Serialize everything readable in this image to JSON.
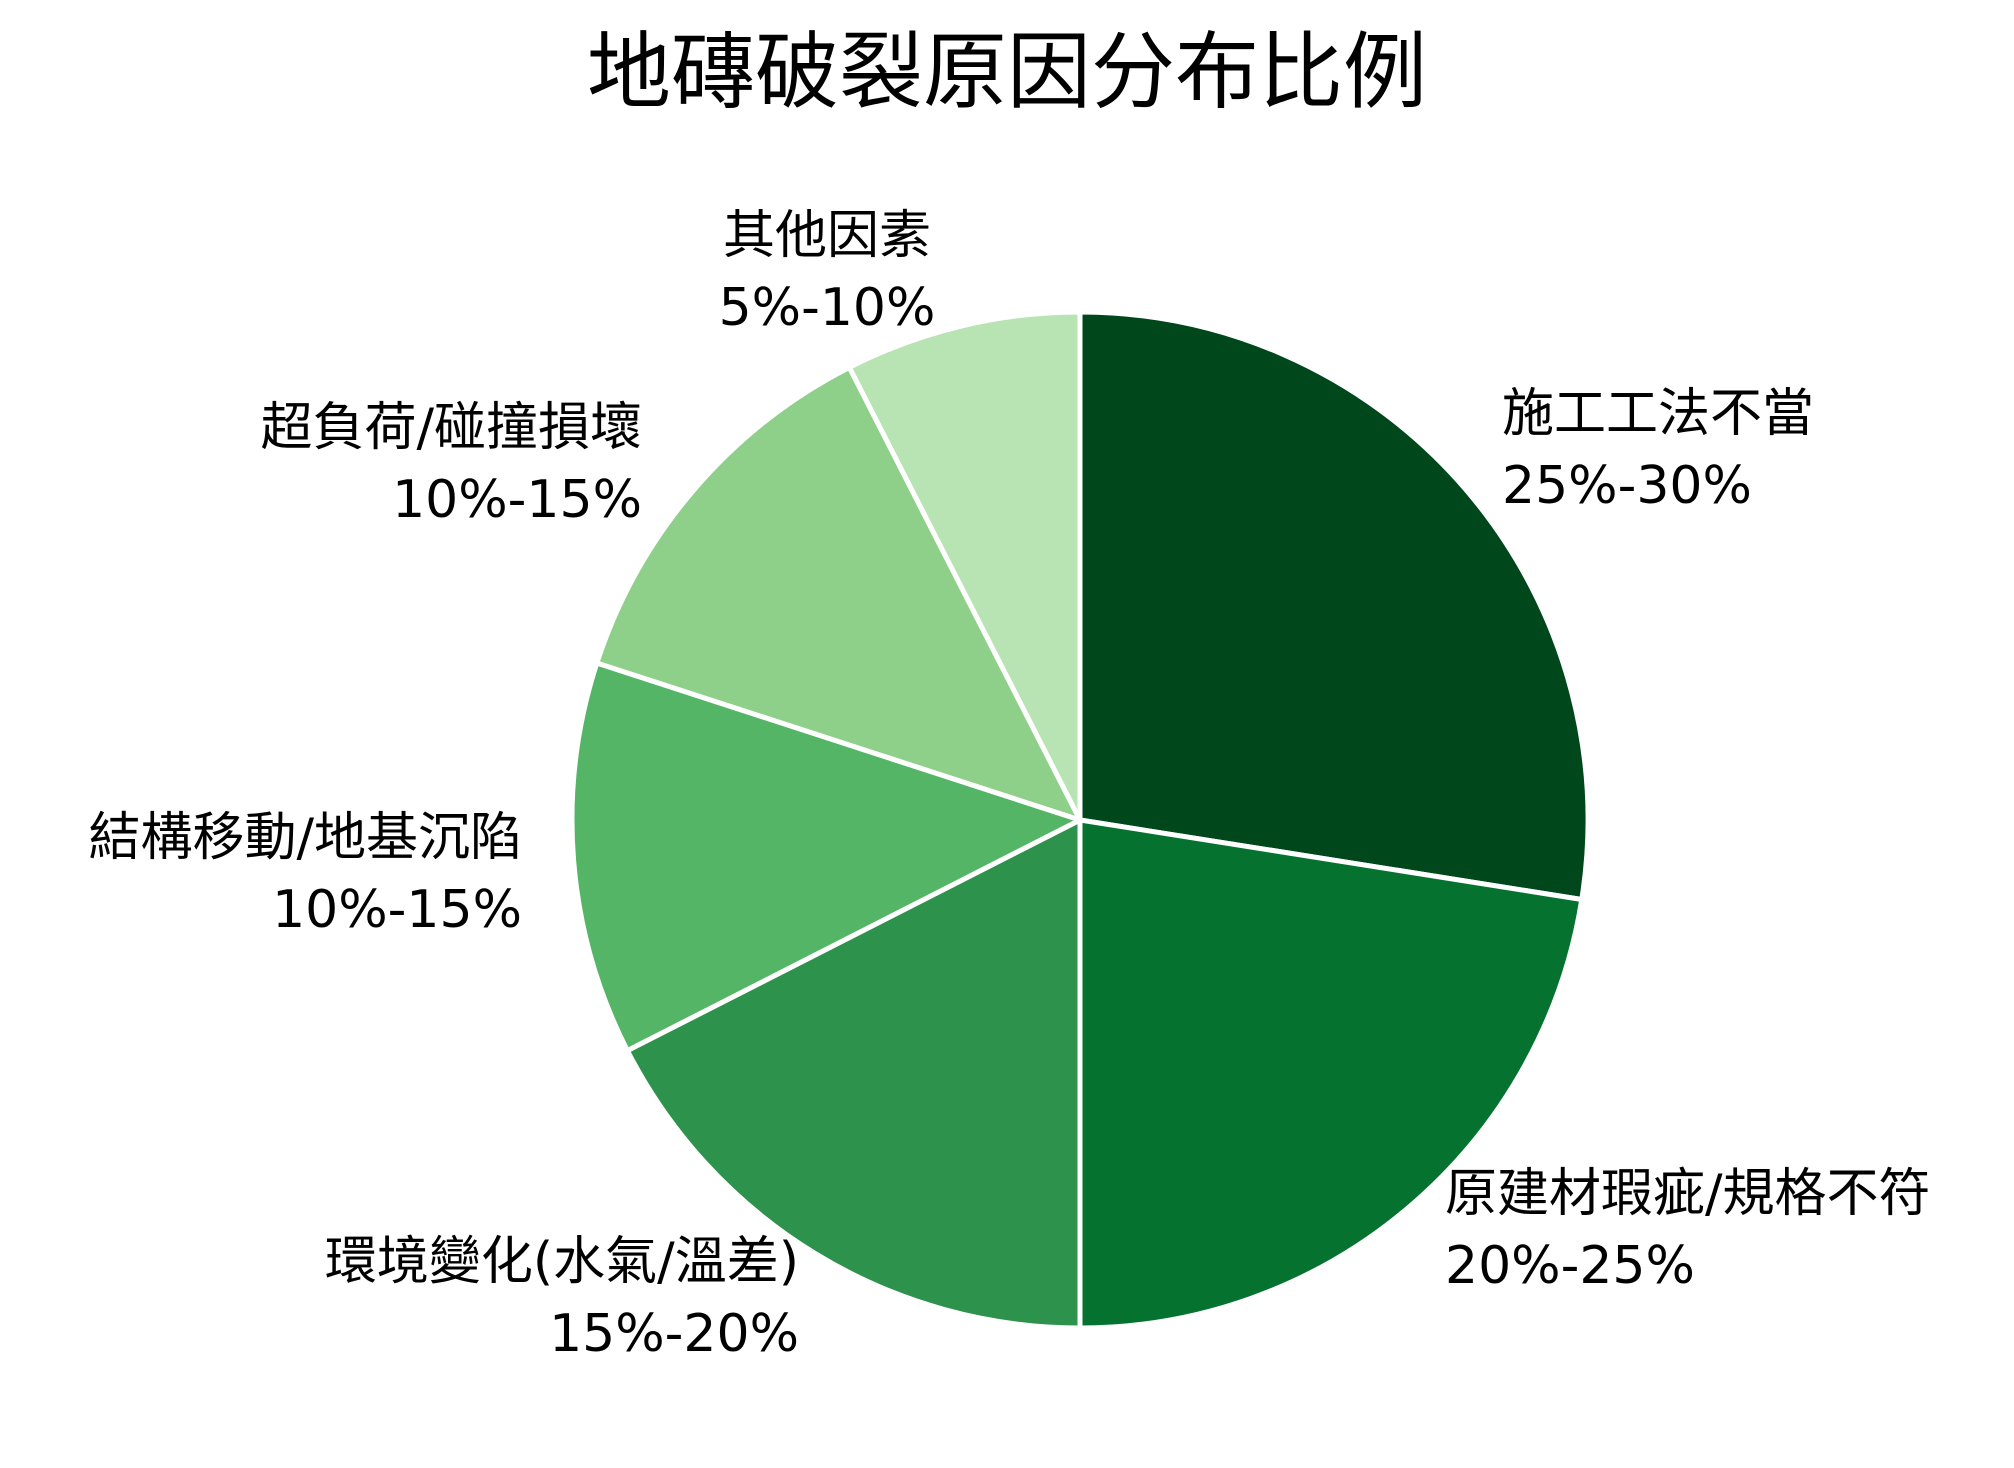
{
  "chart_data": {
    "type": "pie",
    "title": "地磚破裂原因分布比例",
    "slices": [
      {
        "label": "施工工法不當",
        "range": "25%-30%",
        "value": 27.5,
        "color": "#00471b"
      },
      {
        "label": "原建材瑕疵/規格不符",
        "range": "20%-25%",
        "value": 22.5,
        "color": "#067230"
      },
      {
        "label": "環境變化(水氣/溫差)",
        "range": "15%-20%",
        "value": 17.5,
        "color": "#2d924b"
      },
      {
        "label": "結構移動/地基沉陷",
        "range": "10%-15%",
        "value": 12.5,
        "color": "#55b567"
      },
      {
        "label": "超負荷/碰撞損壞",
        "range": "10%-15%",
        "value": 12.5,
        "color": "#8ecf89"
      },
      {
        "label": "其他因素",
        "range": "5%-10%",
        "value": 7.5,
        "color": "#b8e3b3"
      }
    ],
    "start_angle": "top",
    "direction": "clockwise",
    "slice_border_color": "#ffffff",
    "legend": "none"
  }
}
